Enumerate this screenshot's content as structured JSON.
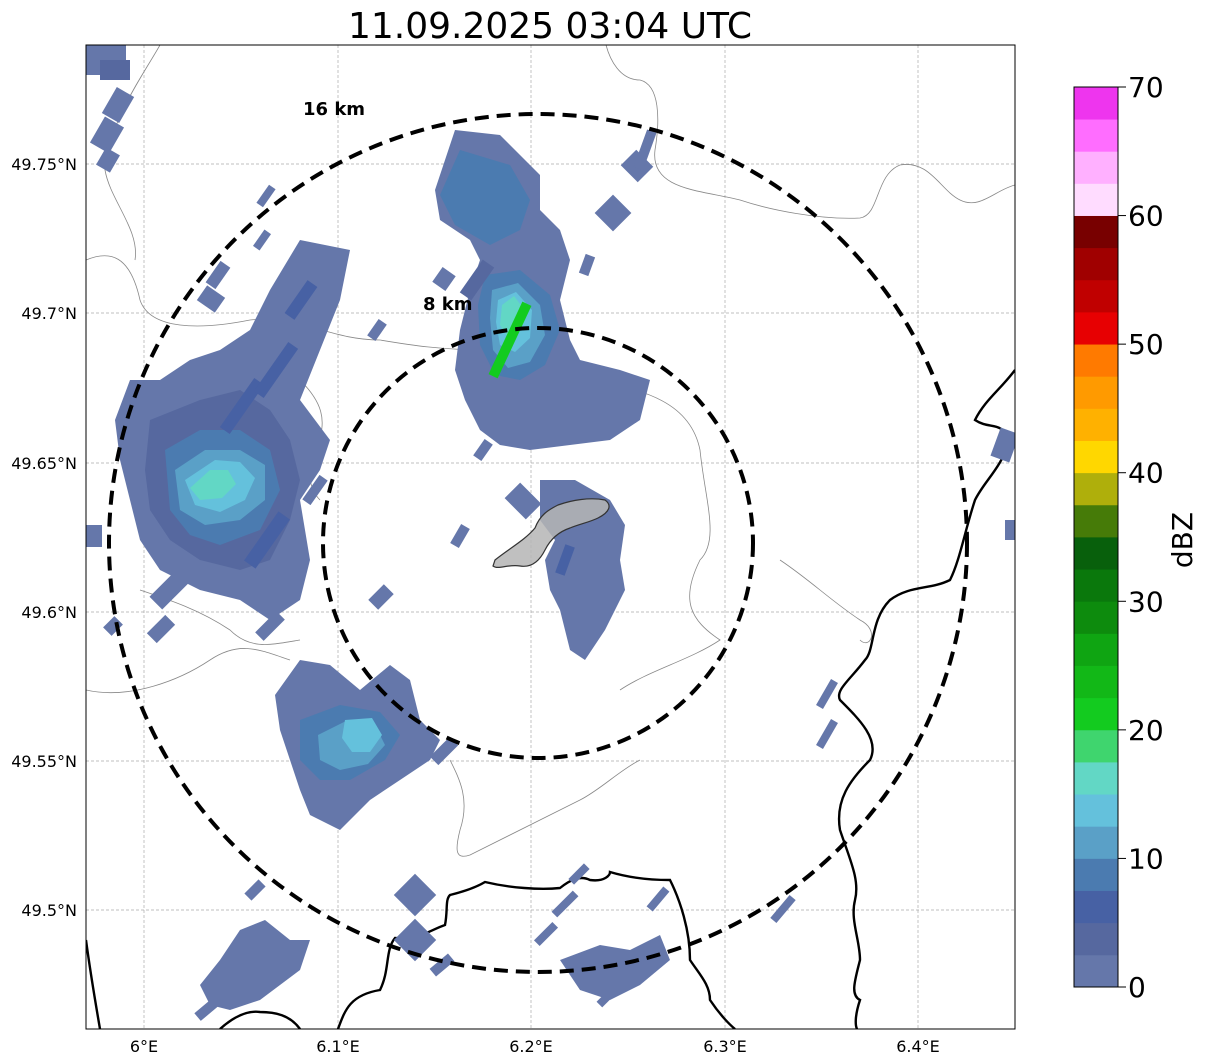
{
  "title": "11.09.2025 03:04 UTC",
  "x_ticks": [
    "6°E",
    "6.1°E",
    "6.2°E",
    "6.3°E",
    "6.4°E"
  ],
  "y_ticks": [
    "49.75°N",
    "49.7°N",
    "49.65°N",
    "49.6°N",
    "49.55°N",
    "49.5°N"
  ],
  "rings": [
    {
      "label": "16 km",
      "radius_km": 16
    },
    {
      "label": "8 km",
      "radius_km": 8
    }
  ],
  "colorbar": {
    "label": "dBZ",
    "min": 0,
    "max": 70,
    "ticks": [
      "0",
      "10",
      "20",
      "30",
      "40",
      "50",
      "60",
      "70"
    ],
    "colors": [
      "#6577aa",
      "#56689f",
      "#4761a4",
      "#4b7bb0",
      "#5aa0c7",
      "#64c1dc",
      "#62d7c5",
      "#3fd56e",
      "#13cb1f",
      "#12b817",
      "#0fa512",
      "#0d8b0d",
      "#0a780c",
      "#08600c",
      "#467b08",
      "#afaf0b",
      "#ffd700",
      "#ffb100",
      "#ff9a00",
      "#ff7a00",
      "#e70002",
      "#c00000",
      "#a00000",
      "#780000",
      "#ffdcff",
      "#ffb0ff",
      "#ff6dff",
      "#ee35ee"
    ]
  },
  "chart_data": {
    "type": "radar-reflectivity-map",
    "title": "11.09.2025 03:04 UTC",
    "x_axis": {
      "range_deg_e": [
        5.97,
        6.45
      ],
      "ticks": [
        6.0,
        6.1,
        6.2,
        6.3,
        6.4
      ]
    },
    "y_axis": {
      "range_deg_n": [
        49.46,
        49.79
      ],
      "ticks": [
        49.5,
        49.55,
        49.6,
        49.65,
        49.7,
        49.75
      ]
    },
    "center": {
      "lon": 6.2,
      "lat": 49.623
    },
    "grid": true,
    "colorbar_range_dbz": [
      0,
      70
    ],
    "max_echo_dbz_approx": 20,
    "echo_cells": [
      {
        "lon": 6.04,
        "lat": 49.64,
        "max_dbz": 17
      },
      {
        "lon": 6.2,
        "lat": 49.695,
        "max_dbz": 20
      },
      {
        "lon": 6.11,
        "lat": 49.56,
        "max_dbz": 14
      },
      {
        "lon": 6.24,
        "lat": 49.63,
        "max_dbz": 5
      },
      {
        "lon": 6.19,
        "lat": 49.74,
        "max_dbz": 10
      },
      {
        "lon": 6.07,
        "lat": 49.48,
        "max_dbz": 3
      }
    ]
  }
}
